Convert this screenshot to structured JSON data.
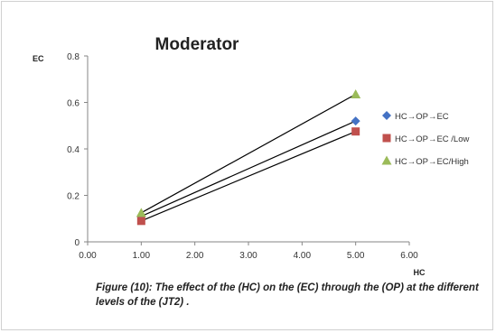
{
  "chart_data": {
    "type": "line",
    "title": "Moderator",
    "ylabel": "EC",
    "xlabel": "HC",
    "xlim": [
      0,
      6
    ],
    "ylim": [
      0,
      0.8
    ],
    "x_ticks": [
      "0.00",
      "1.00",
      "2.00",
      "3.00",
      "4.00",
      "5.00",
      "6.00"
    ],
    "y_ticks": [
      "0",
      "0.2",
      "0.4",
      "0.6",
      "0.8"
    ],
    "grid": false,
    "legend_position": "right",
    "series": [
      {
        "name": "HC→OP→EC",
        "x": [
          1,
          5
        ],
        "y": [
          0.11,
          0.52
        ],
        "marker": "diamond",
        "color": "#4472C4"
      },
      {
        "name": "HC→OP→EC /Low",
        "x": [
          1,
          5
        ],
        "y": [
          0.09,
          0.475
        ],
        "marker": "square",
        "color": "#C0504D"
      },
      {
        "name": "HC→OP→EC/High",
        "x": [
          1,
          5
        ],
        "y": [
          0.125,
          0.635
        ],
        "marker": "triangle",
        "color": "#9BBB59"
      }
    ],
    "line_color": "#000000",
    "caption": "Figure (10): The effect of the (HC) on the (EC)  through the (OP) at the different levels of the (JT2) ."
  }
}
